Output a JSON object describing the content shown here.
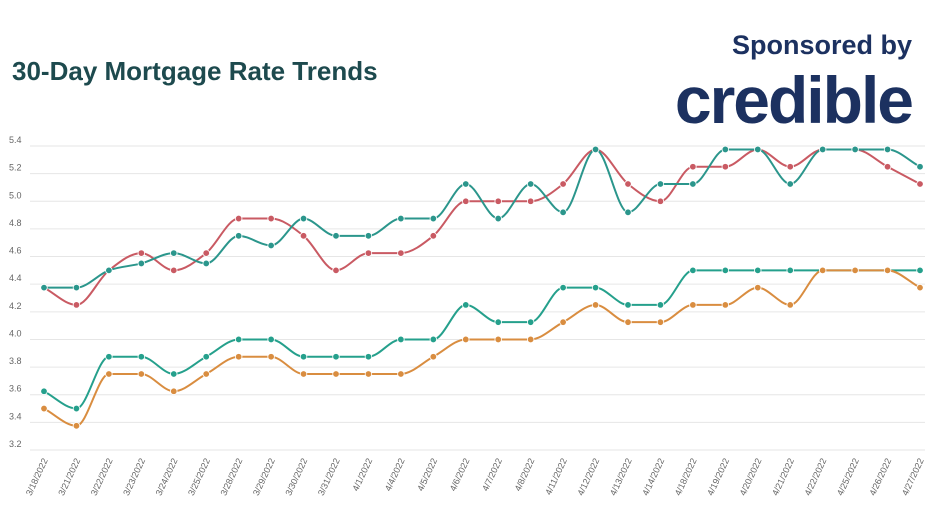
{
  "header": {
    "title": "30-Day Mortgage Rate Trends",
    "sponsor_text": "Sponsored by",
    "sponsor_logo": "credible"
  },
  "chart_data": {
    "type": "line",
    "title": "30-Day Mortgage Rate Trends",
    "xlabel": "",
    "ylabel": "",
    "ylim": [
      3.2,
      5.4
    ],
    "yticks": [
      "3.2",
      "3.4",
      "3.6",
      "3.8",
      "4.0",
      "4.2",
      "4.4",
      "4.6",
      "4.8",
      "5.0",
      "5.2",
      "5.4"
    ],
    "grid": true,
    "legend": "none",
    "categories": [
      "3/18/2022",
      "3/21/2022",
      "3/22/2022",
      "3/23/2022",
      "3/24/2022",
      "3/25/2022",
      "3/28/2022",
      "3/29/2022",
      "3/30/2022",
      "3/31/2022",
      "4/1/2022",
      "4/4/2022",
      "4/5/2022",
      "4/6/2022",
      "4/7/2022",
      "4/8/2022",
      "4/11/2022",
      "4/12/2022",
      "4/13/2022",
      "4/14/2022",
      "4/18/2022",
      "4/19/2022",
      "4/20/2022",
      "4/21/2022",
      "4/22/2022",
      "4/25/2022",
      "4/26/2022",
      "4/27/2022"
    ],
    "series": [
      {
        "color": "#c95a63",
        "values": [
          4.375,
          4.25,
          4.5,
          4.625,
          4.5,
          4.625,
          4.875,
          4.875,
          4.75,
          4.5,
          4.625,
          4.625,
          4.75,
          5.0,
          5.0,
          5.0,
          5.125,
          5.375,
          5.125,
          5.0,
          5.25,
          5.25,
          5.375,
          5.25,
          5.375,
          5.375,
          5.25,
          5.125
        ]
      },
      {
        "color": "#2b968c",
        "values": [
          4.375,
          4.375,
          4.5,
          4.55,
          4.625,
          4.55,
          4.75,
          4.68,
          4.875,
          4.75,
          4.75,
          4.875,
          4.875,
          5.125,
          4.875,
          5.125,
          4.92,
          5.375,
          4.92,
          5.125,
          5.125,
          5.375,
          5.375,
          5.125,
          5.375,
          5.375,
          5.375,
          5.25
        ]
      },
      {
        "color": "#25a08c",
        "values": [
          3.625,
          3.5,
          3.875,
          3.875,
          3.75,
          3.875,
          4.0,
          4.0,
          3.875,
          3.875,
          3.875,
          4.0,
          4.0,
          4.25,
          4.125,
          4.125,
          4.375,
          4.375,
          4.25,
          4.25,
          4.5,
          4.5,
          4.5,
          4.5,
          4.5,
          4.5,
          4.5,
          4.5
        ]
      },
      {
        "color": "#d98d40",
        "values": [
          3.5,
          3.375,
          3.75,
          3.75,
          3.625,
          3.75,
          3.875,
          3.875,
          3.75,
          3.75,
          3.75,
          3.75,
          3.875,
          4.0,
          4.0,
          4.0,
          4.125,
          4.25,
          4.125,
          4.125,
          4.25,
          4.25,
          4.375,
          4.25,
          4.5,
          4.5,
          4.5,
          4.375
        ]
      }
    ]
  }
}
